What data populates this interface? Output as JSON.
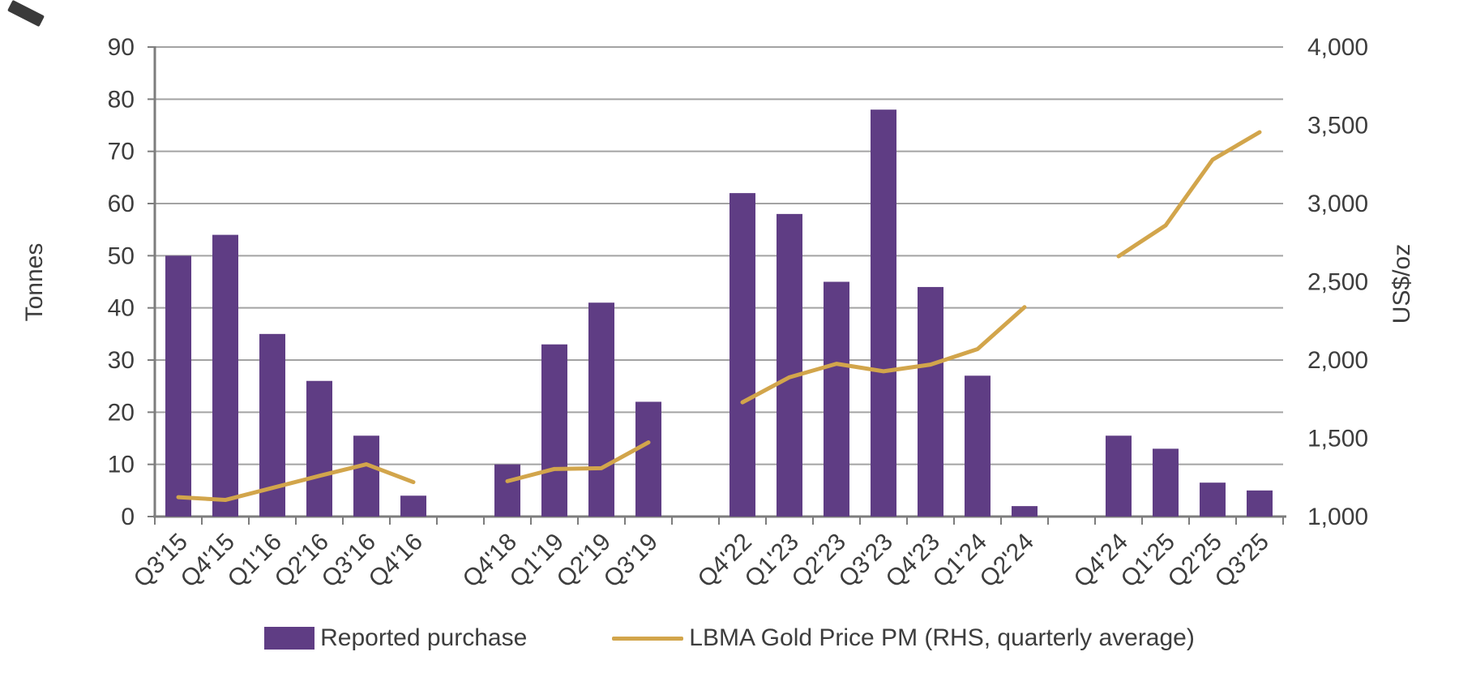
{
  "chart_data": {
    "type": "bar",
    "dual_axis": true,
    "title": "",
    "left_axis": {
      "label": "Tonnes",
      "min": 0,
      "max": 90,
      "step": 10,
      "tick_labels": [
        "0",
        "10",
        "20",
        "30",
        "40",
        "50",
        "60",
        "70",
        "80",
        "90"
      ]
    },
    "right_axis": {
      "label": "US$/oz",
      "min": 1000,
      "max": 4000,
      "step": 500,
      "tick_labels": [
        "1,000",
        "1,500",
        "2,000",
        "2,500",
        "3,000",
        "3,500",
        "4,000"
      ]
    },
    "categories": [
      "Q3'15",
      "Q4'15",
      "Q1'16",
      "Q2'16",
      "Q3'16",
      "Q4'16",
      "Q4'18",
      "Q1'19",
      "Q2'19",
      "Q3'19",
      "Q4'22",
      "Q1'23",
      "Q2'23",
      "Q3'23",
      "Q4'23",
      "Q1'24",
      "Q2'24",
      "Q4'24",
      "Q1'25",
      "Q2'25",
      "Q3'25"
    ],
    "slots": [
      {
        "label": "Q3'15",
        "bar": 50,
        "line": 1124
      },
      {
        "label": "Q4'15",
        "bar": 54,
        "line": 1106
      },
      {
        "label": "Q1'16",
        "bar": 35,
        "line": 1183
      },
      {
        "label": "Q2'16",
        "bar": 26,
        "line": 1260
      },
      {
        "label": "Q3'16",
        "bar": 15.5,
        "line": 1334
      },
      {
        "label": "Q4'16",
        "bar": 4,
        "line": 1220
      },
      {
        "label": "",
        "bar": null,
        "line": null
      },
      {
        "label": "Q4'18",
        "bar": 10,
        "line": 1226
      },
      {
        "label": "Q1'19",
        "bar": 33,
        "line": 1304
      },
      {
        "label": "Q2'19",
        "bar": 41,
        "line": 1309
      },
      {
        "label": "Q3'19",
        "bar": 22,
        "line": 1474
      },
      {
        "label": "",
        "bar": null,
        "line": null
      },
      {
        "label": "Q4'22",
        "bar": 62,
        "line": 1730
      },
      {
        "label": "Q1'23",
        "bar": 58,
        "line": 1890
      },
      {
        "label": "Q2'23",
        "bar": 45,
        "line": 1976
      },
      {
        "label": "Q3'23",
        "bar": 78,
        "line": 1928
      },
      {
        "label": "Q4'23",
        "bar": 44,
        "line": 1971
      },
      {
        "label": "Q1'24",
        "bar": 27,
        "line": 2070
      },
      {
        "label": "Q2'24",
        "bar": 2,
        "line": 2338
      },
      {
        "label": "",
        "bar": null,
        "line": null
      },
      {
        "label": "Q4'24",
        "bar": 15.5,
        "line": 2663
      },
      {
        "label": "Q1'25",
        "bar": 13,
        "line": 2860
      },
      {
        "label": "Q2'25",
        "bar": 6.5,
        "line": 3280
      },
      {
        "label": "Q3'25",
        "bar": 5,
        "line": 3456
      }
    ],
    "series": [
      {
        "name": "Reported purchase",
        "type": "bar",
        "axis": "left",
        "color": "#5f3d84"
      },
      {
        "name": "LBMA Gold Price PM (RHS, quarterly average)",
        "type": "line",
        "axis": "right",
        "color": "#d2a54b"
      }
    ],
    "grid": true,
    "legend_position": "bottom"
  },
  "colors": {
    "bar": "#5f3d84",
    "line": "#d2a54b",
    "grid": "#a3a3a3",
    "axis": "#7d7d7d",
    "text": "#3d3d3d"
  }
}
